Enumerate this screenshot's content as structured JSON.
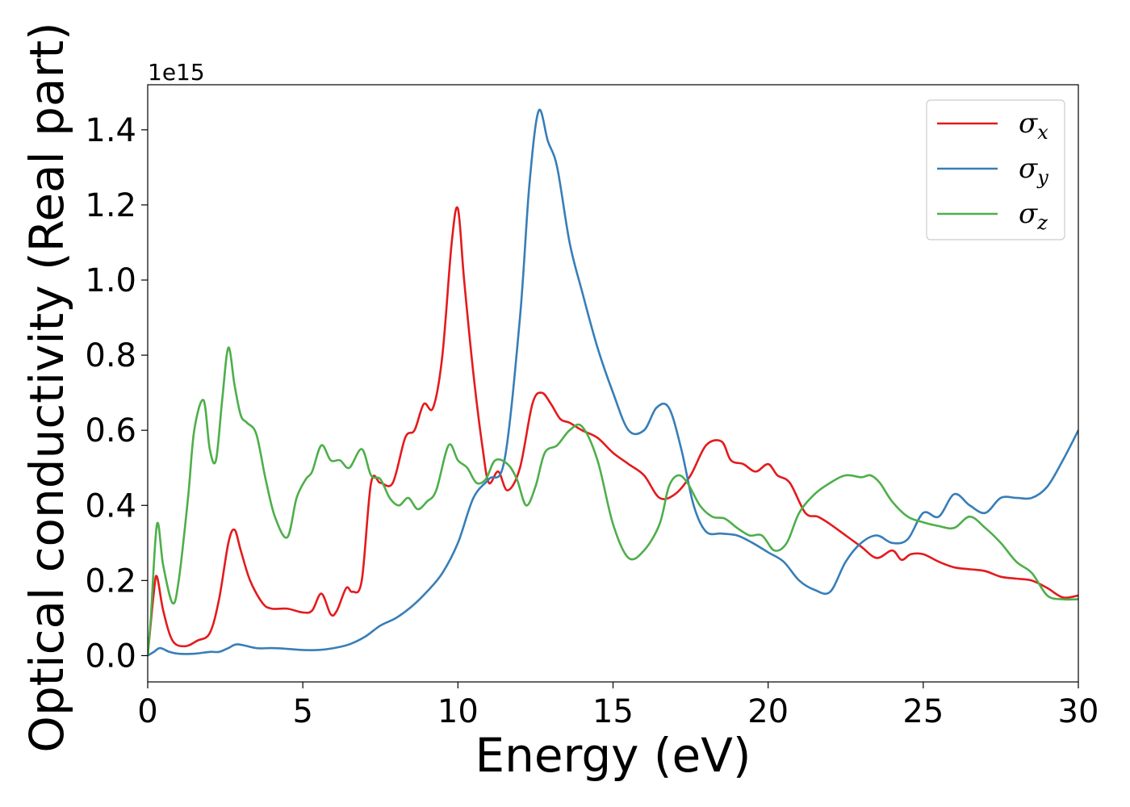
{
  "chart_data": {
    "type": "line",
    "xlabel": "Energy (eV)",
    "ylabel": "Optical conductivity (Real part)",
    "y_offset_text": "1e15",
    "y_multiplier": 1000000000000000.0,
    "xlim": [
      0,
      30
    ],
    "ylim": [
      -0.07,
      1.52
    ],
    "xticks": [
      0,
      5,
      10,
      15,
      20,
      25,
      30
    ],
    "xtick_labels": [
      "0",
      "5",
      "10",
      "15",
      "20",
      "25",
      "30"
    ],
    "yticks": [
      0.0,
      0.2,
      0.4,
      0.6,
      0.8,
      1.0,
      1.2,
      1.4
    ],
    "ytick_labels": [
      "0.0",
      "0.2",
      "0.4",
      "0.6",
      "0.8",
      "1.0",
      "1.2",
      "1.4"
    ],
    "grid": false,
    "legend_position": "top-right",
    "series": [
      {
        "name": "σx",
        "symbol": "σ",
        "subscript": "x",
        "color": "#e41a1c",
        "x": [
          0,
          0.2,
          0.3,
          0.5,
          0.8,
          1.2,
          1.6,
          2.0,
          2.3,
          2.6,
          2.8,
          3.0,
          3.3,
          3.7,
          4.0,
          4.5,
          5.0,
          5.3,
          5.6,
          5.9,
          6.1,
          6.4,
          6.6,
          6.9,
          7.2,
          7.5,
          7.9,
          8.3,
          8.6,
          8.9,
          9.2,
          9.5,
          9.8,
          10.0,
          10.2,
          10.5,
          10.8,
          11.0,
          11.3,
          11.6,
          12.0,
          12.4,
          12.7,
          13.0,
          13.3,
          13.6,
          14.0,
          14.5,
          15.0,
          15.5,
          16.0,
          16.5,
          17.0,
          17.5,
          18.0,
          18.5,
          18.8,
          19.2,
          19.6,
          20.0,
          20.3,
          20.7,
          21.2,
          21.6,
          22.0,
          22.5,
          23.0,
          23.5,
          24.0,
          24.3,
          24.6,
          25.0,
          25.5,
          26.0,
          26.5,
          27.0,
          27.5,
          28.0,
          28.5,
          29.0,
          29.5,
          30.0
        ],
        "y": [
          0.0,
          0.17,
          0.21,
          0.12,
          0.04,
          0.025,
          0.04,
          0.06,
          0.15,
          0.3,
          0.335,
          0.28,
          0.2,
          0.14,
          0.125,
          0.125,
          0.115,
          0.12,
          0.165,
          0.11,
          0.12,
          0.18,
          0.17,
          0.2,
          0.46,
          0.46,
          0.46,
          0.58,
          0.6,
          0.67,
          0.66,
          0.8,
          1.1,
          1.19,
          1.0,
          0.75,
          0.55,
          0.46,
          0.49,
          0.44,
          0.5,
          0.67,
          0.7,
          0.67,
          0.63,
          0.62,
          0.6,
          0.58,
          0.54,
          0.51,
          0.48,
          0.42,
          0.43,
          0.48,
          0.56,
          0.57,
          0.52,
          0.51,
          0.49,
          0.51,
          0.48,
          0.46,
          0.38,
          0.37,
          0.35,
          0.32,
          0.29,
          0.26,
          0.28,
          0.255,
          0.27,
          0.27,
          0.25,
          0.235,
          0.23,
          0.225,
          0.21,
          0.205,
          0.2,
          0.18,
          0.155,
          0.16
        ]
      },
      {
        "name": "σy",
        "symbol": "σ",
        "subscript": "y",
        "color": "#377eb8",
        "x": [
          0,
          0.2,
          0.4,
          0.7,
          1.0,
          1.5,
          2.0,
          2.3,
          2.6,
          2.9,
          3.5,
          4.0,
          4.5,
          5.0,
          5.5,
          6.0,
          6.5,
          7.0,
          7.5,
          8.0,
          8.5,
          9.0,
          9.5,
          10.0,
          10.5,
          11.0,
          11.5,
          12.0,
          12.3,
          12.6,
          12.9,
          13.2,
          13.6,
          14.0,
          14.5,
          15.0,
          15.5,
          16.0,
          16.4,
          16.8,
          17.2,
          17.6,
          18.0,
          18.5,
          19.0,
          19.5,
          20.0,
          20.5,
          21.0,
          21.5,
          22.0,
          22.5,
          23.0,
          23.5,
          24.0,
          24.5,
          25.0,
          25.5,
          26.0,
          26.5,
          27.0,
          27.5,
          28.0,
          28.5,
          29.0,
          29.5,
          30.0
        ],
        "y": [
          0.0,
          0.01,
          0.02,
          0.01,
          0.005,
          0.005,
          0.01,
          0.01,
          0.02,
          0.03,
          0.02,
          0.02,
          0.018,
          0.015,
          0.015,
          0.02,
          0.03,
          0.05,
          0.08,
          0.1,
          0.13,
          0.17,
          0.22,
          0.3,
          0.42,
          0.47,
          0.52,
          0.9,
          1.25,
          1.45,
          1.37,
          1.3,
          1.1,
          0.97,
          0.82,
          0.7,
          0.6,
          0.6,
          0.66,
          0.66,
          0.55,
          0.4,
          0.33,
          0.325,
          0.32,
          0.3,
          0.275,
          0.25,
          0.2,
          0.175,
          0.17,
          0.25,
          0.3,
          0.32,
          0.3,
          0.31,
          0.38,
          0.37,
          0.43,
          0.4,
          0.38,
          0.42,
          0.42,
          0.42,
          0.45,
          0.52,
          0.6
        ]
      },
      {
        "name": "σz",
        "symbol": "σ",
        "subscript": "z",
        "color": "#4daf4a",
        "x": [
          0,
          0.1,
          0.3,
          0.5,
          0.8,
          1.0,
          1.3,
          1.5,
          1.8,
          2.0,
          2.2,
          2.4,
          2.6,
          2.8,
          3.0,
          3.2,
          3.5,
          3.8,
          4.1,
          4.5,
          4.8,
          5.1,
          5.3,
          5.6,
          5.9,
          6.2,
          6.5,
          6.9,
          7.2,
          7.5,
          7.8,
          8.1,
          8.4,
          8.7,
          9.0,
          9.3,
          9.7,
          10.0,
          10.3,
          10.6,
          10.9,
          11.2,
          11.6,
          11.9,
          12.2,
          12.5,
          12.8,
          13.2,
          13.6,
          14.0,
          14.5,
          15.0,
          15.5,
          16.0,
          16.5,
          16.8,
          17.1,
          17.4,
          17.8,
          18.2,
          18.6,
          19.0,
          19.4,
          19.8,
          20.2,
          20.6,
          21.0,
          21.5,
          22.0,
          22.5,
          23.0,
          23.3,
          23.6,
          24.0,
          24.5,
          25.0,
          25.5,
          26.0,
          26.5,
          27.0,
          27.5,
          28.0,
          28.5,
          29.0,
          29.5,
          30.0
        ],
        "y": [
          0.0,
          0.1,
          0.35,
          0.24,
          0.14,
          0.2,
          0.42,
          0.6,
          0.68,
          0.55,
          0.52,
          0.68,
          0.82,
          0.72,
          0.64,
          0.62,
          0.59,
          0.47,
          0.37,
          0.315,
          0.42,
          0.47,
          0.49,
          0.56,
          0.52,
          0.52,
          0.5,
          0.55,
          0.48,
          0.47,
          0.42,
          0.4,
          0.42,
          0.39,
          0.41,
          0.44,
          0.56,
          0.52,
          0.5,
          0.46,
          0.47,
          0.52,
          0.51,
          0.47,
          0.4,
          0.45,
          0.54,
          0.56,
          0.6,
          0.61,
          0.52,
          0.35,
          0.26,
          0.28,
          0.35,
          0.45,
          0.48,
          0.46,
          0.4,
          0.37,
          0.365,
          0.34,
          0.32,
          0.32,
          0.28,
          0.3,
          0.38,
          0.43,
          0.46,
          0.48,
          0.475,
          0.48,
          0.46,
          0.41,
          0.37,
          0.355,
          0.345,
          0.34,
          0.37,
          0.34,
          0.3,
          0.25,
          0.22,
          0.16,
          0.15,
          0.15
        ]
      }
    ]
  }
}
